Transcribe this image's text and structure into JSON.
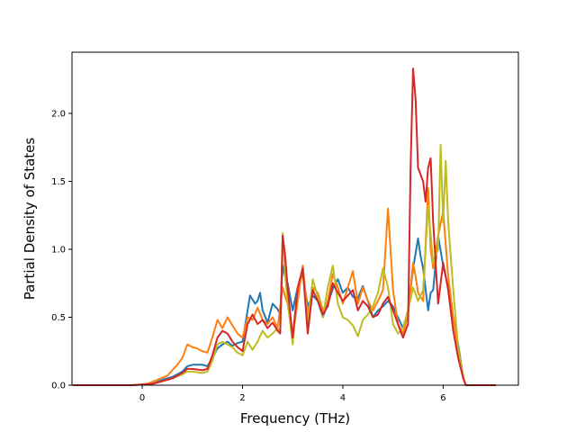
{
  "chart_data": {
    "type": "line",
    "title": "",
    "xlabel": "Frequency (THz)",
    "ylabel": "Partial Density of States",
    "xlim": [
      -1.4,
      7.5
    ],
    "ylim": [
      0.0,
      2.45
    ],
    "xticks": [
      0,
      2,
      4,
      6
    ],
    "xtick_labels": [
      "0",
      "2",
      "4",
      "6"
    ],
    "yticks": [
      0.0,
      0.5,
      1.0,
      1.5,
      2.0
    ],
    "ytick_labels": [
      "0.0",
      "0.5",
      "1.0",
      "1.5",
      "2.0"
    ],
    "grid": false,
    "legend": "none",
    "series": [
      {
        "color": "#1f77b4",
        "points": [
          [
            -1.38,
            0
          ],
          [
            -0.2,
            0
          ],
          [
            0.2,
            0.01
          ],
          [
            0.4,
            0.04
          ],
          [
            0.6,
            0.06
          ],
          [
            0.8,
            0.1
          ],
          [
            0.9,
            0.14
          ],
          [
            1.0,
            0.15
          ],
          [
            1.2,
            0.15
          ],
          [
            1.3,
            0.14
          ],
          [
            1.4,
            0.2
          ],
          [
            1.5,
            0.27
          ],
          [
            1.6,
            0.3
          ],
          [
            1.7,
            0.32
          ],
          [
            1.8,
            0.29
          ],
          [
            1.9,
            0.31
          ],
          [
            2.0,
            0.32
          ],
          [
            2.1,
            0.55
          ],
          [
            2.15,
            0.66
          ],
          [
            2.25,
            0.6
          ],
          [
            2.3,
            0.62
          ],
          [
            2.35,
            0.68
          ],
          [
            2.4,
            0.55
          ],
          [
            2.5,
            0.46
          ],
          [
            2.6,
            0.6
          ],
          [
            2.7,
            0.56
          ],
          [
            2.75,
            0.52
          ],
          [
            2.8,
            0.88
          ],
          [
            2.85,
            0.8
          ],
          [
            2.9,
            0.75
          ],
          [
            3.0,
            0.55
          ],
          [
            3.1,
            0.72
          ],
          [
            3.2,
            0.82
          ],
          [
            3.3,
            0.58
          ],
          [
            3.4,
            0.66
          ],
          [
            3.5,
            0.62
          ],
          [
            3.6,
            0.5
          ],
          [
            3.7,
            0.6
          ],
          [
            3.8,
            0.71
          ],
          [
            3.9,
            0.78
          ],
          [
            4.0,
            0.68
          ],
          [
            4.1,
            0.72
          ],
          [
            4.2,
            0.65
          ],
          [
            4.3,
            0.64
          ],
          [
            4.4,
            0.73
          ],
          [
            4.5,
            0.62
          ],
          [
            4.6,
            0.5
          ],
          [
            4.7,
            0.55
          ],
          [
            4.8,
            0.58
          ],
          [
            4.9,
            0.62
          ],
          [
            5.0,
            0.58
          ],
          [
            5.1,
            0.5
          ],
          [
            5.2,
            0.42
          ],
          [
            5.3,
            0.55
          ],
          [
            5.4,
            0.86
          ],
          [
            5.5,
            1.08
          ],
          [
            5.55,
            0.95
          ],
          [
            5.6,
            0.86
          ],
          [
            5.7,
            0.55
          ],
          [
            5.75,
            0.68
          ],
          [
            5.8,
            0.7
          ],
          [
            5.9,
            1.1
          ],
          [
            6.0,
            0.88
          ],
          [
            6.1,
            0.72
          ],
          [
            6.2,
            0.5
          ],
          [
            6.3,
            0.3
          ],
          [
            6.4,
            0.06
          ],
          [
            6.45,
            0.0
          ],
          [
            7.05,
            0.0
          ]
        ]
      },
      {
        "color": "#ff7f0e",
        "points": [
          [
            -1.38,
            0
          ],
          [
            -0.2,
            0
          ],
          [
            0.1,
            0.01
          ],
          [
            0.3,
            0.04
          ],
          [
            0.5,
            0.07
          ],
          [
            0.7,
            0.15
          ],
          [
            0.8,
            0.2
          ],
          [
            0.9,
            0.3
          ],
          [
            1.0,
            0.28
          ],
          [
            1.1,
            0.27
          ],
          [
            1.2,
            0.25
          ],
          [
            1.3,
            0.24
          ],
          [
            1.4,
            0.35
          ],
          [
            1.5,
            0.48
          ],
          [
            1.6,
            0.42
          ],
          [
            1.7,
            0.5
          ],
          [
            1.8,
            0.44
          ],
          [
            1.9,
            0.38
          ],
          [
            2.0,
            0.35
          ],
          [
            2.1,
            0.5
          ],
          [
            2.2,
            0.48
          ],
          [
            2.3,
            0.57
          ],
          [
            2.4,
            0.48
          ],
          [
            2.5,
            0.45
          ],
          [
            2.6,
            0.5
          ],
          [
            2.7,
            0.42
          ],
          [
            2.8,
            0.72
          ],
          [
            2.85,
            0.65
          ],
          [
            2.9,
            0.6
          ],
          [
            3.0,
            0.35
          ],
          [
            3.1,
            0.62
          ],
          [
            3.2,
            0.88
          ],
          [
            3.3,
            0.52
          ],
          [
            3.4,
            0.72
          ],
          [
            3.5,
            0.68
          ],
          [
            3.6,
            0.55
          ],
          [
            3.7,
            0.62
          ],
          [
            3.8,
            0.82
          ],
          [
            3.9,
            0.72
          ],
          [
            4.0,
            0.6
          ],
          [
            4.1,
            0.72
          ],
          [
            4.2,
            0.84
          ],
          [
            4.3,
            0.6
          ],
          [
            4.4,
            0.72
          ],
          [
            4.5,
            0.62
          ],
          [
            4.6,
            0.55
          ],
          [
            4.7,
            0.62
          ],
          [
            4.8,
            0.7
          ],
          [
            4.9,
            1.3
          ],
          [
            5.0,
            0.7
          ],
          [
            5.1,
            0.45
          ],
          [
            5.2,
            0.38
          ],
          [
            5.3,
            0.52
          ],
          [
            5.4,
            0.9
          ],
          [
            5.45,
            0.8
          ],
          [
            5.5,
            0.68
          ],
          [
            5.6,
            0.62
          ],
          [
            5.7,
            1.45
          ],
          [
            5.75,
            1.0
          ],
          [
            5.8,
            0.86
          ],
          [
            5.9,
            1.1
          ],
          [
            6.0,
            1.28
          ],
          [
            6.1,
            0.8
          ],
          [
            6.2,
            0.5
          ],
          [
            6.3,
            0.25
          ],
          [
            6.4,
            0.06
          ],
          [
            6.45,
            0.0
          ],
          [
            7.05,
            0.0
          ]
        ]
      },
      {
        "color": "#bcbd22",
        "points": [
          [
            -1.38,
            0
          ],
          [
            -0.2,
            0
          ],
          [
            0.2,
            0.01
          ],
          [
            0.4,
            0.03
          ],
          [
            0.6,
            0.05
          ],
          [
            0.8,
            0.08
          ],
          [
            0.9,
            0.1
          ],
          [
            1.0,
            0.1
          ],
          [
            1.2,
            0.09
          ],
          [
            1.3,
            0.1
          ],
          [
            1.4,
            0.18
          ],
          [
            1.5,
            0.3
          ],
          [
            1.6,
            0.32
          ],
          [
            1.7,
            0.3
          ],
          [
            1.8,
            0.28
          ],
          [
            1.9,
            0.24
          ],
          [
            2.0,
            0.22
          ],
          [
            2.1,
            0.32
          ],
          [
            2.2,
            0.26
          ],
          [
            2.3,
            0.32
          ],
          [
            2.4,
            0.4
          ],
          [
            2.5,
            0.35
          ],
          [
            2.6,
            0.38
          ],
          [
            2.7,
            0.42
          ],
          [
            2.75,
            0.38
          ],
          [
            2.8,
            1.12
          ],
          [
            2.85,
            0.8
          ],
          [
            2.9,
            0.62
          ],
          [
            3.0,
            0.3
          ],
          [
            3.1,
            0.72
          ],
          [
            3.2,
            0.85
          ],
          [
            3.3,
            0.45
          ],
          [
            3.4,
            0.78
          ],
          [
            3.5,
            0.65
          ],
          [
            3.6,
            0.5
          ],
          [
            3.7,
            0.72
          ],
          [
            3.8,
            0.88
          ],
          [
            3.9,
            0.6
          ],
          [
            4.0,
            0.5
          ],
          [
            4.1,
            0.48
          ],
          [
            4.2,
            0.44
          ],
          [
            4.3,
            0.36
          ],
          [
            4.4,
            0.48
          ],
          [
            4.5,
            0.52
          ],
          [
            4.6,
            0.58
          ],
          [
            4.7,
            0.68
          ],
          [
            4.8,
            0.86
          ],
          [
            4.9,
            0.72
          ],
          [
            5.0,
            0.45
          ],
          [
            5.1,
            0.38
          ],
          [
            5.2,
            0.42
          ],
          [
            5.3,
            0.55
          ],
          [
            5.4,
            0.72
          ],
          [
            5.5,
            0.62
          ],
          [
            5.6,
            0.7
          ],
          [
            5.7,
            1.32
          ],
          [
            5.8,
            0.9
          ],
          [
            5.9,
            1.0
          ],
          [
            5.95,
            1.77
          ],
          [
            6.0,
            1.2
          ],
          [
            6.05,
            1.65
          ],
          [
            6.1,
            1.2
          ],
          [
            6.2,
            0.7
          ],
          [
            6.3,
            0.28
          ],
          [
            6.4,
            0.06
          ],
          [
            6.45,
            0.0
          ],
          [
            7.05,
            0.0
          ]
        ]
      },
      {
        "color": "#d62728",
        "points": [
          [
            -1.38,
            0
          ],
          [
            -0.2,
            0
          ],
          [
            0.2,
            0.01
          ],
          [
            0.4,
            0.03
          ],
          [
            0.6,
            0.05
          ],
          [
            0.8,
            0.09
          ],
          [
            0.9,
            0.12
          ],
          [
            1.0,
            0.12
          ],
          [
            1.2,
            0.11
          ],
          [
            1.3,
            0.12
          ],
          [
            1.4,
            0.22
          ],
          [
            1.5,
            0.35
          ],
          [
            1.6,
            0.4
          ],
          [
            1.7,
            0.38
          ],
          [
            1.8,
            0.32
          ],
          [
            1.9,
            0.28
          ],
          [
            2.0,
            0.25
          ],
          [
            2.1,
            0.45
          ],
          [
            2.2,
            0.52
          ],
          [
            2.3,
            0.45
          ],
          [
            2.4,
            0.48
          ],
          [
            2.5,
            0.42
          ],
          [
            2.6,
            0.46
          ],
          [
            2.7,
            0.4
          ],
          [
            2.75,
            0.38
          ],
          [
            2.8,
            1.1
          ],
          [
            2.85,
            0.95
          ],
          [
            2.9,
            0.72
          ],
          [
            3.0,
            0.35
          ],
          [
            3.1,
            0.72
          ],
          [
            3.2,
            0.86
          ],
          [
            3.3,
            0.38
          ],
          [
            3.4,
            0.7
          ],
          [
            3.5,
            0.62
          ],
          [
            3.6,
            0.52
          ],
          [
            3.7,
            0.58
          ],
          [
            3.8,
            0.75
          ],
          [
            3.9,
            0.68
          ],
          [
            4.0,
            0.62
          ],
          [
            4.1,
            0.66
          ],
          [
            4.2,
            0.7
          ],
          [
            4.3,
            0.55
          ],
          [
            4.4,
            0.62
          ],
          [
            4.5,
            0.58
          ],
          [
            4.6,
            0.5
          ],
          [
            4.7,
            0.52
          ],
          [
            4.8,
            0.6
          ],
          [
            4.9,
            0.65
          ],
          [
            5.0,
            0.55
          ],
          [
            5.1,
            0.45
          ],
          [
            5.2,
            0.35
          ],
          [
            5.3,
            0.45
          ],
          [
            5.35,
            1.6
          ],
          [
            5.4,
            2.33
          ],
          [
            5.45,
            2.1
          ],
          [
            5.5,
            1.6
          ],
          [
            5.6,
            1.5
          ],
          [
            5.65,
            1.35
          ],
          [
            5.7,
            1.6
          ],
          [
            5.75,
            1.67
          ],
          [
            5.8,
            1.2
          ],
          [
            5.9,
            0.6
          ],
          [
            6.0,
            0.9
          ],
          [
            6.1,
            0.7
          ],
          [
            6.2,
            0.4
          ],
          [
            6.3,
            0.2
          ],
          [
            6.4,
            0.05
          ],
          [
            6.45,
            0.0
          ],
          [
            7.05,
            0.0
          ]
        ]
      }
    ]
  }
}
